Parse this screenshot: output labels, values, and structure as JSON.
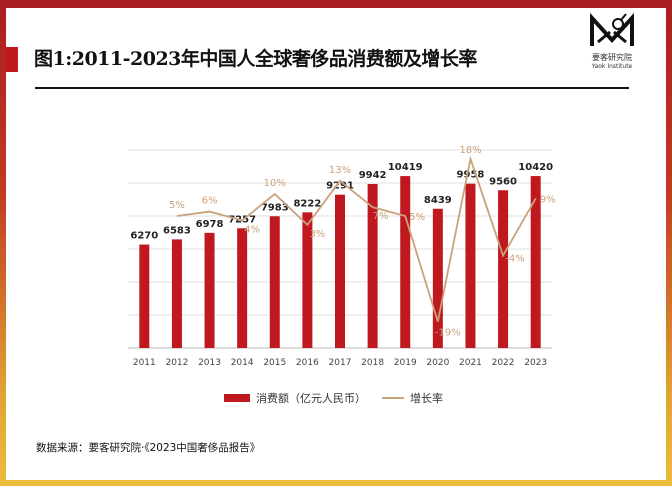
{
  "header": {
    "title": "图1:2011-2023年中国人全球奢侈品消费额及增长率",
    "logo_cn": "要客研究院",
    "logo_en": "Yaok Institute"
  },
  "colors": {
    "bar": "#c0181f",
    "line": "#c9a27a",
    "frame_top": "#a81e22",
    "frame_bottom": "#ebbd3a"
  },
  "chart_data": {
    "type": "bar+line",
    "categories": [
      "2011",
      "2012",
      "2013",
      "2014",
      "2015",
      "2016",
      "2017",
      "2018",
      "2019",
      "2020",
      "2021",
      "2022",
      "2023"
    ],
    "series": [
      {
        "name": "消费额（亿元人民币）",
        "type": "bar",
        "values": [
          6270,
          6583,
          6978,
          7257,
          7983,
          8222,
          9291,
          9942,
          10419,
          8439,
          9958,
          9560,
          10420
        ],
        "labels": [
          "6270",
          "6583",
          "6978",
          "7257",
          "7983",
          "8222",
          "9291",
          "9942",
          "10419",
          "8439",
          "9958",
          "9560",
          "10420"
        ]
      },
      {
        "name": "增长率",
        "type": "line",
        "values": [
          null,
          5,
          6,
          4,
          10,
          3,
          13,
          7,
          5,
          -19,
          18,
          -4,
          9
        ],
        "labels": [
          "",
          "5%",
          "6%",
          "4%",
          "10%",
          "3%",
          "13%",
          "7%",
          "5%",
          "-19%",
          "18%",
          "-4%",
          "9%"
        ]
      }
    ],
    "ylim": [
      0,
      12000
    ],
    "y2lim": [
      -25,
      20
    ],
    "grid": true,
    "legend": "bottom"
  },
  "legend": {
    "bar": "消费额（亿元人民币）",
    "line": "增长率"
  },
  "footer": {
    "source": "数据来源：要客研究院·《2023中国奢侈品报告》"
  }
}
